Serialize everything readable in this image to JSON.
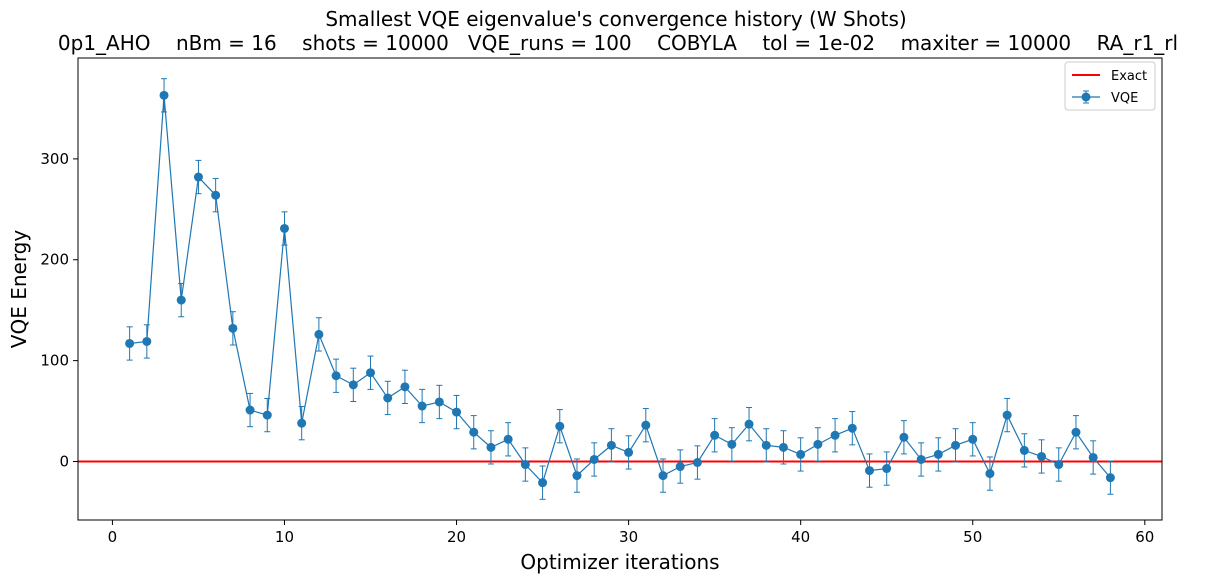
{
  "chart_data": {
    "type": "line",
    "title": "Smallest VQE eigenvalue's convergence history (W Shots)",
    "subtitle": "0p1_AHO    nBm = 16    shots = 10000   VQE_runs = 100    COBYLA    tol = 1e-02    maxiter = 10000    RA_r1_rl",
    "xlabel": "Optimizer iterations",
    "ylabel": "VQE Energy",
    "xlim": [
      -2,
      61
    ],
    "ylim": [
      -58,
      400
    ],
    "xticks": [
      0,
      10,
      20,
      30,
      40,
      50,
      60
    ],
    "yticks": [
      0,
      100,
      200,
      300
    ],
    "grid": false,
    "legend_position": "top-right",
    "colors": {
      "vqe": "#1f77b4",
      "exact": "#ff0000"
    },
    "exact": {
      "name": "Exact",
      "value": 0
    },
    "series": [
      {
        "name": "VQE",
        "x": [
          1,
          2,
          3,
          4,
          5,
          6,
          7,
          8,
          9,
          10,
          11,
          12,
          13,
          14,
          15,
          16,
          17,
          18,
          19,
          20,
          21,
          22,
          23,
          24,
          25,
          26,
          27,
          28,
          29,
          30,
          31,
          32,
          33,
          34,
          35,
          36,
          37,
          38,
          39,
          40,
          41,
          42,
          43,
          44,
          45,
          46,
          47,
          48,
          49,
          50,
          51,
          52,
          53,
          54,
          55,
          56,
          57,
          58
        ],
        "y": [
          117,
          119,
          363,
          160,
          282,
          264,
          132,
          51,
          46,
          231,
          38,
          126,
          85,
          76,
          88,
          63,
          74,
          55,
          59,
          49,
          29,
          14,
          22,
          -3,
          -21,
          35,
          -14,
          2,
          16,
          9,
          36,
          -14,
          -5,
          -1,
          26,
          17,
          37,
          16,
          14,
          7,
          17,
          26,
          33,
          -9,
          -7,
          24,
          2,
          7,
          16,
          22,
          -12,
          46,
          11,
          5,
          -3,
          29,
          4,
          -16
        ],
        "err": 16.5
      }
    ]
  }
}
